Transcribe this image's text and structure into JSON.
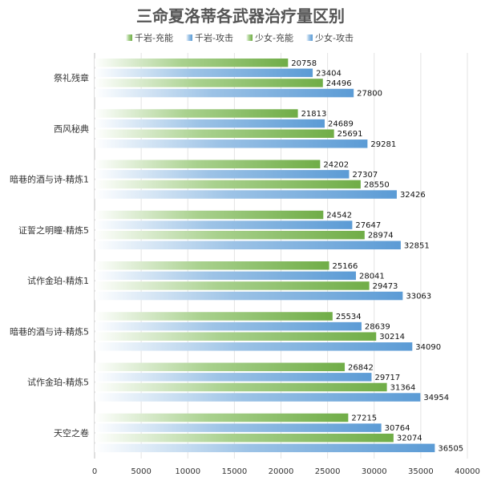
{
  "chart_data": {
    "type": "bar",
    "orientation": "horizontal",
    "title": "三命夏洛蒂各武器治疗量区别",
    "xlabel": "",
    "ylabel": "",
    "xlim": [
      0,
      40000
    ],
    "xticks": [
      "0",
      "5000",
      "10000",
      "15000",
      "20000",
      "25000",
      "30000",
      "35000",
      "40000"
    ],
    "grid": true,
    "legend_position": "top",
    "categories": [
      "祭礼残章",
      "西风秘典",
      "暗巷的酒与诗-精炼1",
      "证誓之明瞳-精炼5",
      "试作金珀-精炼1",
      "暗巷的酒与诗-精炼5",
      "试作金珀-精炼5",
      "天空之卷"
    ],
    "series": [
      {
        "name": "千岩-充能",
        "color": "#70AD47",
        "values": [
          20758,
          21813,
          24202,
          24542,
          25166,
          25534,
          26842,
          27215
        ]
      },
      {
        "name": "千岩-攻击",
        "color": "#5B9BD5",
        "values": [
          23404,
          24689,
          27307,
          27647,
          28041,
          28639,
          29717,
          30764
        ]
      },
      {
        "name": "少女-充能",
        "color": "#70AD47",
        "values": [
          24496,
          25691,
          28550,
          28974,
          29473,
          30214,
          31364,
          32074
        ]
      },
      {
        "name": "少女-攻击",
        "color": "#5B9BD5",
        "values": [
          27800,
          29281,
          32426,
          32851,
          33063,
          34090,
          34954,
          36505
        ]
      }
    ]
  }
}
